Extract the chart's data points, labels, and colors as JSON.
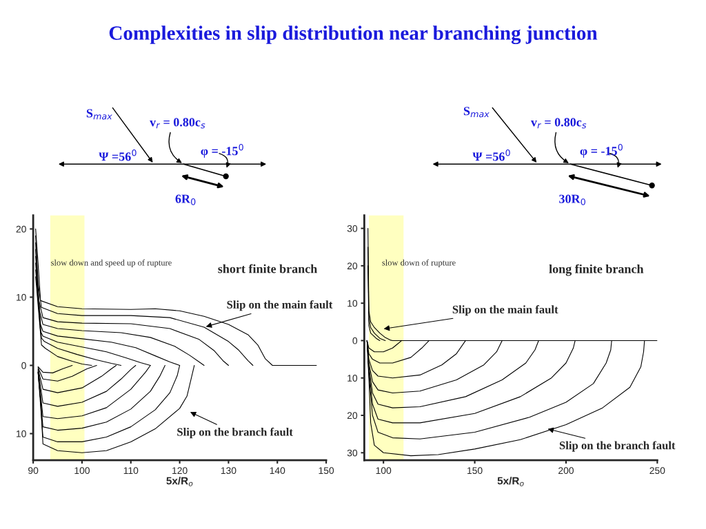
{
  "chart_data": [
    {
      "type": "line",
      "title": "Complexities in slip distribution near branching junction",
      "xlabel": "5x/R$_{o}$",
      "xlim": [
        90,
        150
      ],
      "xticks": [
        90,
        100,
        110,
        120,
        130,
        140,
        150
      ],
      "ylim": [
        -13.9,
        22
      ],
      "yticks": [
        20,
        10,
        0,
        {
          "value": -10,
          "label": "10"
        }
      ],
      "legend": false,
      "grid": false,
      "bands": [
        {
          "axis": "x",
          "from": 93.5,
          "to": 100.5,
          "color": "#ffffc0"
        }
      ],
      "annotations": [
        "short finite branch",
        "slow down and speed up of rupture",
        "S$_{max}$",
        "v$_{r}$ = 0.80c$_{s}$",
        "Ψ =56$^{0}$",
        "φ = -15$^{0}$",
        "6R$_{0}$",
        {
          "text": "Slip on the main fault",
          "x": 125,
          "y": 5.6
        },
        "Slip on the branch fault"
      ],
      "series": [
        {
          "color": "#000000",
          "x": [
            90.5,
            91,
            91.5,
            95,
            100,
            110,
            115,
            120,
            125,
            130,
            134,
            136,
            137.5,
            139,
            148
          ],
          "values": [
            20,
            15,
            9.5,
            8.6,
            8.3,
            8.2,
            8.3,
            8.0,
            7.2,
            6.0,
            4.5,
            3,
            1,
            0,
            0
          ]
        },
        {
          "color": "#000000",
          "x": [
            90.5,
            91,
            91.7,
            95,
            100,
            110,
            118,
            125,
            130,
            132,
            134,
            135
          ],
          "values": [
            19,
            12,
            8.5,
            7.6,
            7.3,
            7.3,
            7.0,
            5.6,
            3.5,
            2.3,
            0.7,
            0
          ]
        },
        {
          "color": "#000000",
          "x": [
            90.5,
            91,
            92,
            95,
            100,
            110,
            118,
            124,
            127,
            129,
            130
          ],
          "values": [
            18,
            10,
            7,
            6.4,
            6.2,
            6.1,
            5.4,
            3.8,
            2.2,
            0.6,
            0
          ]
        },
        {
          "color": "#000000",
          "x": [
            90.5,
            91.3,
            92,
            95,
            100,
            108,
            114,
            119,
            122,
            124,
            125
          ],
          "values": [
            17,
            8,
            6,
            5.4,
            5.1,
            4.8,
            4.1,
            2.8,
            1.5,
            0.5,
            0
          ]
        },
        {
          "color": "#000000",
          "x": [
            90.5,
            91.5,
            92,
            95,
            100,
            106,
            111,
            115,
            118,
            120
          ],
          "values": [
            16,
            6,
            5,
            4.3,
            3.9,
            3.4,
            2.6,
            1.4,
            0.5,
            0
          ]
        },
        {
          "color": "#000000",
          "x": [
            90.5,
            91.5,
            92,
            95,
            100,
            105,
            109,
            112,
            114
          ],
          "values": [
            15,
            5,
            4.3,
            3.4,
            2.7,
            2.0,
            1.1,
            0.4,
            0
          ]
        },
        {
          "color": "#000000",
          "x": [
            90.5,
            91.7,
            92.3,
            95,
            99,
            103,
            106,
            108
          ],
          "values": [
            14,
            4,
            3.5,
            2.5,
            1.6,
            0.8,
            0.3,
            0
          ]
        },
        {
          "color": "#000000",
          "x": [
            90.5,
            91.7,
            92.5,
            95,
            98,
            100,
            102
          ],
          "values": [
            13,
            3,
            2.5,
            1.3,
            0.6,
            0.2,
            0
          ]
        },
        {
          "color": "#000000",
          "x": [
            91,
            91.5,
            92,
            95,
            100,
            105,
            110,
            115,
            120,
            121.5,
            122.5,
            123
          ],
          "values": [
            -1,
            -5,
            -11.5,
            -12.5,
            -12.8,
            -12.5,
            -11.2,
            -9.3,
            -6.3,
            -4.5,
            -1.5,
            0
          ]
        },
        {
          "color": "#000000",
          "x": [
            91,
            92,
            95,
            100,
            105,
            110,
            115,
            118,
            119.5,
            120
          ],
          "values": [
            -1,
            -10.5,
            -11.2,
            -11.2,
            -10.5,
            -9,
            -6.5,
            -4,
            -1.5,
            0
          ]
        },
        {
          "color": "#000000",
          "x": [
            91,
            92,
            95,
            100,
            105,
            110,
            114,
            116,
            117
          ],
          "values": [
            -1,
            -9,
            -9.5,
            -9.2,
            -8.3,
            -6.4,
            -3.8,
            -1.5,
            0
          ]
        },
        {
          "color": "#000000",
          "x": [
            91,
            92,
            95,
            100,
            105,
            110,
            113,
            114
          ],
          "values": [
            -0.8,
            -7.5,
            -7.8,
            -7.4,
            -6.2,
            -3.5,
            -1,
            0
          ]
        },
        {
          "color": "#000000",
          "x": [
            91,
            92,
            95,
            100,
            105,
            108,
            110,
            111
          ],
          "values": [
            -0.6,
            -5.5,
            -6,
            -5.4,
            -3.8,
            -2,
            -0.6,
            0
          ]
        },
        {
          "color": "#000000",
          "x": [
            91,
            92,
            95,
            100,
            104,
            106,
            107
          ],
          "values": [
            -0.5,
            -3.5,
            -4,
            -3.3,
            -1.6,
            -0.5,
            0
          ]
        },
        {
          "color": "#000000",
          "x": [
            91,
            92,
            95,
            98,
            101,
            103
          ],
          "values": [
            -0.3,
            -2,
            -2.3,
            -1.6,
            -0.5,
            0
          ]
        },
        {
          "color": "#000000",
          "x": [
            91,
            92,
            94,
            96,
            98
          ],
          "values": [
            -0.2,
            -1,
            -1.1,
            -0.5,
            0
          ]
        }
      ]
    },
    {
      "type": "line",
      "xlabel": "5x/R$_{o}$",
      "xlim": [
        89.5,
        250
      ],
      "xticks": [
        100,
        150,
        200,
        250
      ],
      "ylim": [
        -32,
        33.5
      ],
      "yticks": [
        30,
        20,
        10,
        0,
        {
          "value": -10,
          "label": "10"
        },
        {
          "value": -20,
          "label": "20"
        },
        {
          "value": -30,
          "label": "30"
        }
      ],
      "legend": false,
      "grid": false,
      "bands": [
        {
          "axis": "x",
          "from": 92,
          "to": 111,
          "color": "#ffffc0"
        }
      ],
      "annotations": [
        "long finite branch",
        "slow down of rupture",
        "S$_{max}$",
        "v$_{r}$ = 0.80c$_{s}$",
        "Ψ =56$^{0}$",
        "φ = -15$^{0}$",
        "30R$_{0}$",
        "Slip on the main fault",
        "Slip on the branch fault"
      ],
      "series": [
        {
          "color": "#000000",
          "x": [
            91.5,
            92,
            93,
            95,
            98,
            101,
            104,
            105,
            250
          ],
          "values": [
            30,
            8,
            5,
            3.5,
            2,
            0.8,
            0.1,
            0,
            0
          ]
        },
        {
          "color": "#000000",
          "x": [
            91.5,
            92,
            93,
            95,
            98,
            101
          ],
          "values": [
            25,
            6,
            3.5,
            2,
            0.6,
            0
          ]
        },
        {
          "color": "#000000",
          "x": [
            91.5,
            92,
            93,
            96,
            98
          ],
          "values": [
            20,
            4,
            2,
            0.6,
            0
          ]
        },
        {
          "color": "#000000",
          "x": [
            91,
            92,
            93,
            95,
            100,
            115,
            130,
            150,
            175,
            200,
            220,
            235,
            241,
            242.5,
            243
          ],
          "values": [
            0,
            -10,
            -22,
            -28,
            -30,
            -30.8,
            -30.5,
            -29,
            -26.5,
            -22.5,
            -18,
            -12.5,
            -7,
            -3,
            0
          ]
        },
        {
          "color": "#000000",
          "x": [
            91,
            92,
            94,
            97,
            105,
            120,
            150,
            180,
            200,
            215,
            222,
            224.5,
            225
          ],
          "values": [
            0,
            -9,
            -20,
            -24.5,
            -26,
            -26.3,
            -24.5,
            -20.5,
            -16.5,
            -11.5,
            -6,
            -2.5,
            0
          ]
        },
        {
          "color": "#000000",
          "x": [
            91,
            92,
            94,
            97,
            105,
            120,
            150,
            175,
            192,
            200,
            204,
            205
          ],
          "values": [
            0,
            -8,
            -17,
            -21,
            -22,
            -22,
            -19.5,
            -15,
            -10,
            -6,
            -2,
            0
          ]
        },
        {
          "color": "#000000",
          "x": [
            91,
            92,
            94,
            97,
            105,
            120,
            145,
            165,
            178,
            183,
            185
          ],
          "values": [
            0,
            -7,
            -14,
            -17,
            -18,
            -17.7,
            -15,
            -10.5,
            -6,
            -2.5,
            0
          ]
        },
        {
          "color": "#000000",
          "x": [
            91,
            92,
            94,
            97,
            105,
            120,
            140,
            155,
            162,
            165
          ],
          "values": [
            0,
            -6,
            -11,
            -13.2,
            -14,
            -13.5,
            -10.5,
            -6.5,
            -3,
            0
          ]
        },
        {
          "color": "#000000",
          "x": [
            91,
            92,
            94,
            97,
            105,
            120,
            132,
            140,
            145
          ],
          "values": [
            0,
            -5,
            -8,
            -9.5,
            -10,
            -9.2,
            -6.5,
            -3.5,
            0
          ]
        },
        {
          "color": "#000000",
          "x": [
            91,
            92,
            94,
            98,
            105,
            115,
            121,
            125
          ],
          "values": [
            0,
            -3.5,
            -5,
            -6,
            -6,
            -4.5,
            -2,
            0
          ]
        },
        {
          "color": "#000000",
          "x": [
            91,
            92,
            95,
            100,
            105,
            108,
            110
          ],
          "values": [
            0,
            -2,
            -3,
            -3,
            -2,
            -0.8,
            0
          ]
        }
      ]
    }
  ]
}
